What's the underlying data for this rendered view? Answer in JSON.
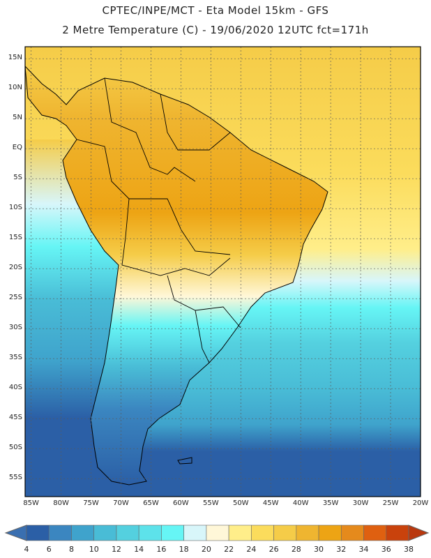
{
  "header": {
    "line1": "CPTEC/INPE/MCT -  Eta Model 15km - GFS",
    "line2": "2 Metre Temperature (C) - 19/06/2020 12UTC fct=171h"
  },
  "map": {
    "region": "South America",
    "lat_labels": [
      "15N",
      "10N",
      "5N",
      "EQ",
      "5S",
      "10S",
      "15S",
      "20S",
      "25S",
      "30S",
      "35S",
      "40S",
      "45S",
      "50S",
      "55S"
    ],
    "lon_labels": [
      "85W",
      "80W",
      "75W",
      "70W",
      "65W",
      "60W",
      "55W",
      "50W",
      "45W",
      "40W",
      "35W",
      "30W",
      "25W",
      "20W"
    ],
    "lat_range": [
      17,
      -58
    ],
    "lon_range": [
      -86,
      -20
    ],
    "lat_step": 5,
    "lon_step": 5
  },
  "colorbar": {
    "labels": [
      "4",
      "6",
      "8",
      "10",
      "12",
      "14",
      "16",
      "18",
      "20",
      "22",
      "24",
      "26",
      "28",
      "30",
      "32",
      "34",
      "36",
      "38"
    ],
    "colors": [
      "#3a6fb0",
      "#2b5fa6",
      "#3b86c0",
      "#3fa3cc",
      "#49bcd6",
      "#54d0df",
      "#5de2ea",
      "#66f5f5",
      "#d8f6fa",
      "#fff7d8",
      "#ffee8a",
      "#fbdc5c",
      "#f5cc48",
      "#efb530",
      "#eda414",
      "#e58a1c",
      "#df6010",
      "#c9420c",
      "#b9380e"
    ],
    "unit": "C"
  },
  "colors": {
    "ocean_cold": "#2b5fa6",
    "ocean_mid": "#49bcd6",
    "ocean_warm": "#fbdc5c",
    "land_hot": "#efb530",
    "border": "#000000",
    "grid": "#5a5a5a"
  }
}
